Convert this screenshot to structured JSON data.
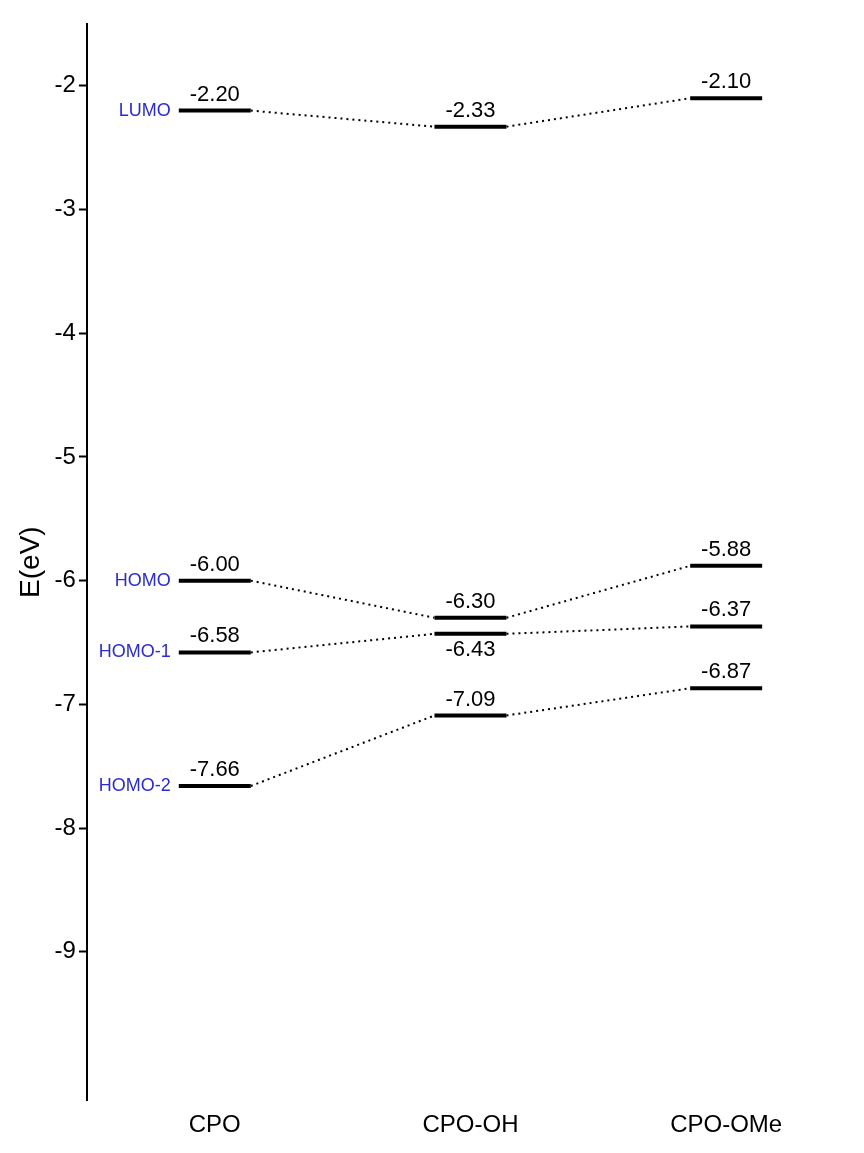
{
  "chart_data": {
    "type": "energy_level",
    "ylabel": "E(eV)",
    "categories": [
      "CPO",
      "CPO-OH",
      "CPO-OMe"
    ],
    "series": [
      {
        "name": "LUMO",
        "color": "#000000",
        "line_style": "dotted",
        "values": [
          -2.2,
          -2.33,
          -2.1
        ],
        "value_labels": [
          "-2.20",
          "-2.33",
          "-2.10"
        ]
      },
      {
        "name": "HOMO",
        "color": "#000000",
        "line_style": "dotted",
        "values": [
          -6.0,
          -6.3,
          -5.88
        ],
        "value_labels": [
          "-6.00",
          "-6.30",
          "-5.88"
        ]
      },
      {
        "name": "HOMO-1",
        "color": "#000000",
        "line_style": "dotted",
        "values": [
          -6.58,
          -6.43,
          -6.37
        ],
        "value_labels": [
          "-6.58",
          "-6.43",
          "-6.37"
        ]
      },
      {
        "name": "HOMO-2",
        "color": "#000000",
        "line_style": "dotted",
        "values": [
          -7.66,
          -7.09,
          -6.87
        ],
        "value_labels": [
          "-7.66",
          "-7.09",
          "-6.87"
        ]
      }
    ],
    "ylim": [
      -10.2,
      -1.5
    ],
    "yticks": [
      -9,
      -8,
      -7,
      -6,
      -5,
      -4,
      -3,
      -2
    ],
    "grid": false,
    "data_labels": true
  }
}
